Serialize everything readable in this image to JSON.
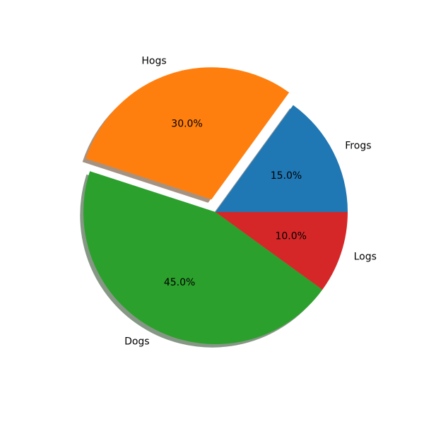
{
  "figure": {
    "background": "#ffffff",
    "text_color": "#000000"
  },
  "chart_data": {
    "type": "pie",
    "title": "",
    "categories": [
      "Frogs",
      "Hogs",
      "Dogs",
      "Logs"
    ],
    "values": [
      15,
      30,
      45,
      10
    ],
    "slices": [
      {
        "label": "Frogs",
        "value": 15,
        "pct_label": "15.0%",
        "color": "#1f77b4",
        "explode": 0
      },
      {
        "label": "Hogs",
        "value": 30,
        "pct_label": "30.0%",
        "color": "#ff7f0e",
        "explode": 0.1
      },
      {
        "label": "Dogs",
        "value": 45,
        "pct_label": "45.0%",
        "color": "#2ca02c",
        "explode": 0
      },
      {
        "label": "Logs",
        "value": 10,
        "pct_label": "10.0%",
        "color": "#d62728",
        "explode": 0
      }
    ],
    "startangle": 0,
    "counterclock": true,
    "shadow": true,
    "autopct_format": "%1.1f%%",
    "labeldistance": 1.1,
    "pctdistance": 0.6,
    "legend": "none",
    "grid": false
  }
}
